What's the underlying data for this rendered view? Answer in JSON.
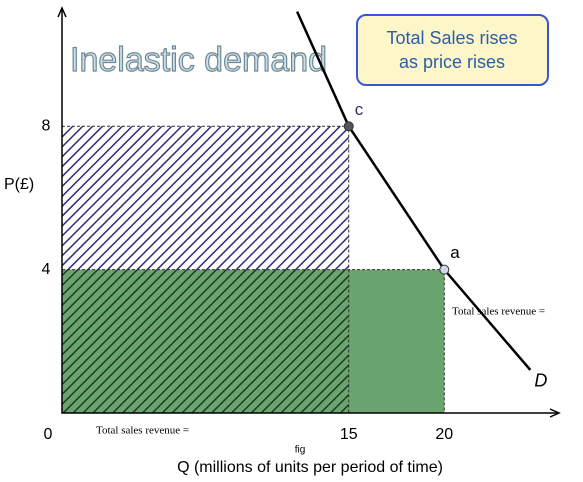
{
  "chart_data": {
    "type": "line",
    "title": "Inelastic demand",
    "annotation": [
      "Total Sales rises",
      "as price rises"
    ],
    "xlabel": "Q (millions of units per period of time)",
    "ylabel": "P(£)",
    "caption": "fig",
    "revenue_labels": [
      "Total sales revenue =",
      "Total sales revenue ="
    ],
    "xlim": [
      0,
      26
    ],
    "ylim": [
      0,
      11.3
    ],
    "xticks": [
      0,
      15,
      20
    ],
    "yticks": [
      4,
      8
    ],
    "series": [
      {
        "name": "D",
        "color": "#000000",
        "x": [
          12.3,
          15,
          20,
          24.5
        ],
        "values": [
          11.2,
          8,
          4,
          1.2
        ]
      }
    ],
    "points": [
      {
        "label": "c",
        "x": 15,
        "y": 8
      },
      {
        "label": "a",
        "x": 20,
        "y": 4
      }
    ]
  }
}
